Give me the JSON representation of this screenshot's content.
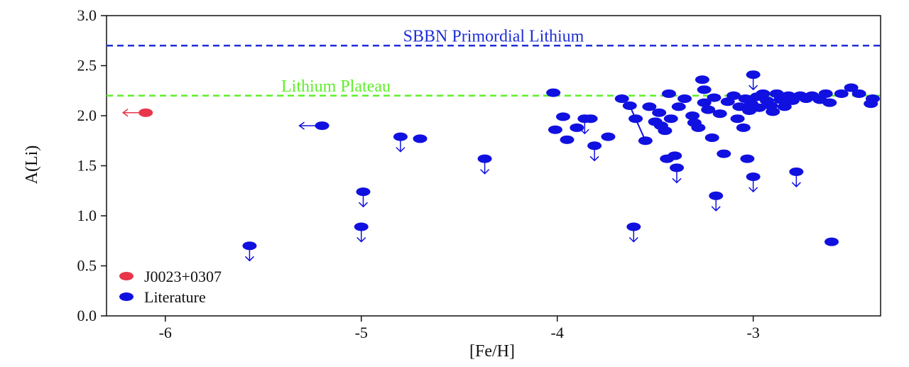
{
  "chart_data": {
    "type": "scatter",
    "title": "",
    "xlabel": "[Fe/H]",
    "ylabel": "A(Li)",
    "xlim": [
      -6.3,
      -2.35
    ],
    "ylim": [
      0.0,
      3.0
    ],
    "x_ticks": [
      -6,
      -5,
      -4,
      -3
    ],
    "x_tick_labels": [
      "-6",
      "-5",
      "-4",
      "-3"
    ],
    "y_ticks": [
      0.0,
      0.5,
      1.0,
      1.5,
      2.0,
      2.5,
      3.0
    ],
    "y_tick_labels": [
      "0.0",
      "0.5",
      "1.0",
      "1.5",
      "2.0",
      "2.5",
      "3.0"
    ],
    "grid": false,
    "legend_position": "bottom-left",
    "reference_lines": [
      {
        "label": "SBBN Primordial Lithium",
        "y": 2.7,
        "color": "#1f2fd6",
        "style": "dashed"
      },
      {
        "label": "Lithium Plateau",
        "y": 2.2,
        "color": "#5ef02a",
        "style": "dashed"
      }
    ],
    "series": [
      {
        "name": "J0023+0307",
        "color": "#e8364a",
        "points": [
          {
            "x": -6.1,
            "y": 2.03,
            "limit": "fe_upper"
          }
        ]
      },
      {
        "name": "Literature",
        "color": "#1010e0",
        "points": [
          {
            "x": -5.2,
            "y": 1.9,
            "limit": "fe_upper"
          },
          {
            "x": -5.57,
            "y": 0.7,
            "limit": "li_upper"
          },
          {
            "x": -4.99,
            "y": 1.24,
            "limit": "li_upper"
          },
          {
            "x": -5.0,
            "y": 0.89,
            "limit": "li_upper"
          },
          {
            "x": -4.8,
            "y": 1.79,
            "limit": "li_upper"
          },
          {
            "x": -4.7,
            "y": 1.77
          },
          {
            "x": -4.37,
            "y": 1.57,
            "limit": "li_upper"
          },
          {
            "x": -4.02,
            "y": 2.23
          },
          {
            "x": -3.97,
            "y": 1.99
          },
          {
            "x": -4.01,
            "y": 1.86
          },
          {
            "x": -3.95,
            "y": 1.76
          },
          {
            "x": -3.9,
            "y": 1.88
          },
          {
            "x": -3.86,
            "y": 1.97,
            "limit": "li_upper"
          },
          {
            "x": -3.83,
            "y": 1.97
          },
          {
            "x": -3.81,
            "y": 1.7,
            "limit": "li_upper"
          },
          {
            "x": -3.74,
            "y": 1.79
          },
          {
            "x": -3.67,
            "y": 2.17
          },
          {
            "x": -3.63,
            "y": 2.1
          },
          {
            "x": -3.6,
            "y": 1.97
          },
          {
            "x": -3.55,
            "y": 1.75
          },
          {
            "x": -3.53,
            "y": 2.09
          },
          {
            "x": -3.5,
            "y": 1.94
          },
          {
            "x": -3.48,
            "y": 2.03
          },
          {
            "x": -3.47,
            "y": 1.9
          },
          {
            "x": -3.45,
            "y": 1.85
          },
          {
            "x": -3.44,
            "y": 1.57
          },
          {
            "x": -3.43,
            "y": 2.22
          },
          {
            "x": -3.42,
            "y": 1.97
          },
          {
            "x": -3.4,
            "y": 1.6
          },
          {
            "x": -3.39,
            "y": 1.48,
            "limit": "li_upper"
          },
          {
            "x": -3.38,
            "y": 2.09
          },
          {
            "x": -3.35,
            "y": 2.17
          },
          {
            "x": -3.31,
            "y": 2.0
          },
          {
            "x": -3.3,
            "y": 1.93
          },
          {
            "x": -3.28,
            "y": 1.88
          },
          {
            "x": -3.26,
            "y": 2.36
          },
          {
            "x": -3.25,
            "y": 2.26
          },
          {
            "x": -3.25,
            "y": 2.13
          },
          {
            "x": -3.23,
            "y": 2.06
          },
          {
            "x": -3.21,
            "y": 1.78
          },
          {
            "x": -3.2,
            "y": 2.18
          },
          {
            "x": -3.19,
            "y": 1.2,
            "limit": "li_upper"
          },
          {
            "x": -3.17,
            "y": 2.02
          },
          {
            "x": -3.15,
            "y": 1.62
          },
          {
            "x": -3.13,
            "y": 2.14
          },
          {
            "x": -3.1,
            "y": 2.2
          },
          {
            "x": -3.08,
            "y": 1.97
          },
          {
            "x": -3.07,
            "y": 2.09
          },
          {
            "x": -3.05,
            "y": 1.88
          },
          {
            "x": -3.04,
            "y": 2.17
          },
          {
            "x": -3.03,
            "y": 1.57
          },
          {
            "x": -3.02,
            "y": 2.05
          },
          {
            "x": -3.01,
            "y": 2.12
          },
          {
            "x": -3.0,
            "y": 2.41,
            "limit": "li_upper"
          },
          {
            "x": -3.0,
            "y": 1.39,
            "limit": "li_upper"
          },
          {
            "x": -2.98,
            "y": 2.19
          },
          {
            "x": -2.97,
            "y": 2.08
          },
          {
            "x": -2.95,
            "y": 2.22
          },
          {
            "x": -2.93,
            "y": 2.15
          },
          {
            "x": -2.91,
            "y": 2.1
          },
          {
            "x": -2.9,
            "y": 2.04
          },
          {
            "x": -2.88,
            "y": 2.22
          },
          {
            "x": -2.86,
            "y": 2.16
          },
          {
            "x": -2.84,
            "y": 2.09
          },
          {
            "x": -2.82,
            "y": 2.2
          },
          {
            "x": -2.8,
            "y": 2.15
          },
          {
            "x": -2.78,
            "y": 1.44,
            "limit": "li_upper"
          },
          {
            "x": -2.76,
            "y": 2.2
          },
          {
            "x": -2.73,
            "y": 2.17
          },
          {
            "x": -2.7,
            "y": 2.2
          },
          {
            "x": -2.66,
            "y": 2.16
          },
          {
            "x": -2.63,
            "y": 2.22
          },
          {
            "x": -2.61,
            "y": 2.13
          },
          {
            "x": -2.6,
            "y": 0.74
          },
          {
            "x": -2.55,
            "y": 2.22
          },
          {
            "x": -2.5,
            "y": 2.28
          },
          {
            "x": -2.46,
            "y": 2.22
          },
          {
            "x": -2.4,
            "y": 2.12
          },
          {
            "x": -2.39,
            "y": 2.17
          },
          {
            "x": -3.61,
            "y": 0.89,
            "limit": "li_upper"
          }
        ],
        "connectors": [
          {
            "from": [
              -3.63,
              2.1
            ],
            "to": [
              -3.55,
              1.75
            ]
          }
        ]
      }
    ]
  }
}
